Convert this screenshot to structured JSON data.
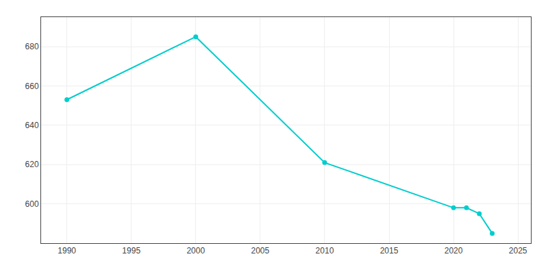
{
  "chart_data": {
    "type": "line",
    "x": [
      1990,
      2000,
      2010,
      2020,
      2021,
      2022,
      2023
    ],
    "values": [
      653,
      685,
      621,
      598,
      598,
      595,
      585
    ],
    "color": "#00CDCD",
    "marker": "circle",
    "xlim": [
      1988,
      2026
    ],
    "xticks": [
      1990,
      1995,
      2000,
      2005,
      2010,
      2015,
      2020,
      2025
    ],
    "ylim": [
      580,
      695
    ],
    "yticks": [
      600,
      620,
      640,
      660,
      680
    ],
    "grid": true
  }
}
